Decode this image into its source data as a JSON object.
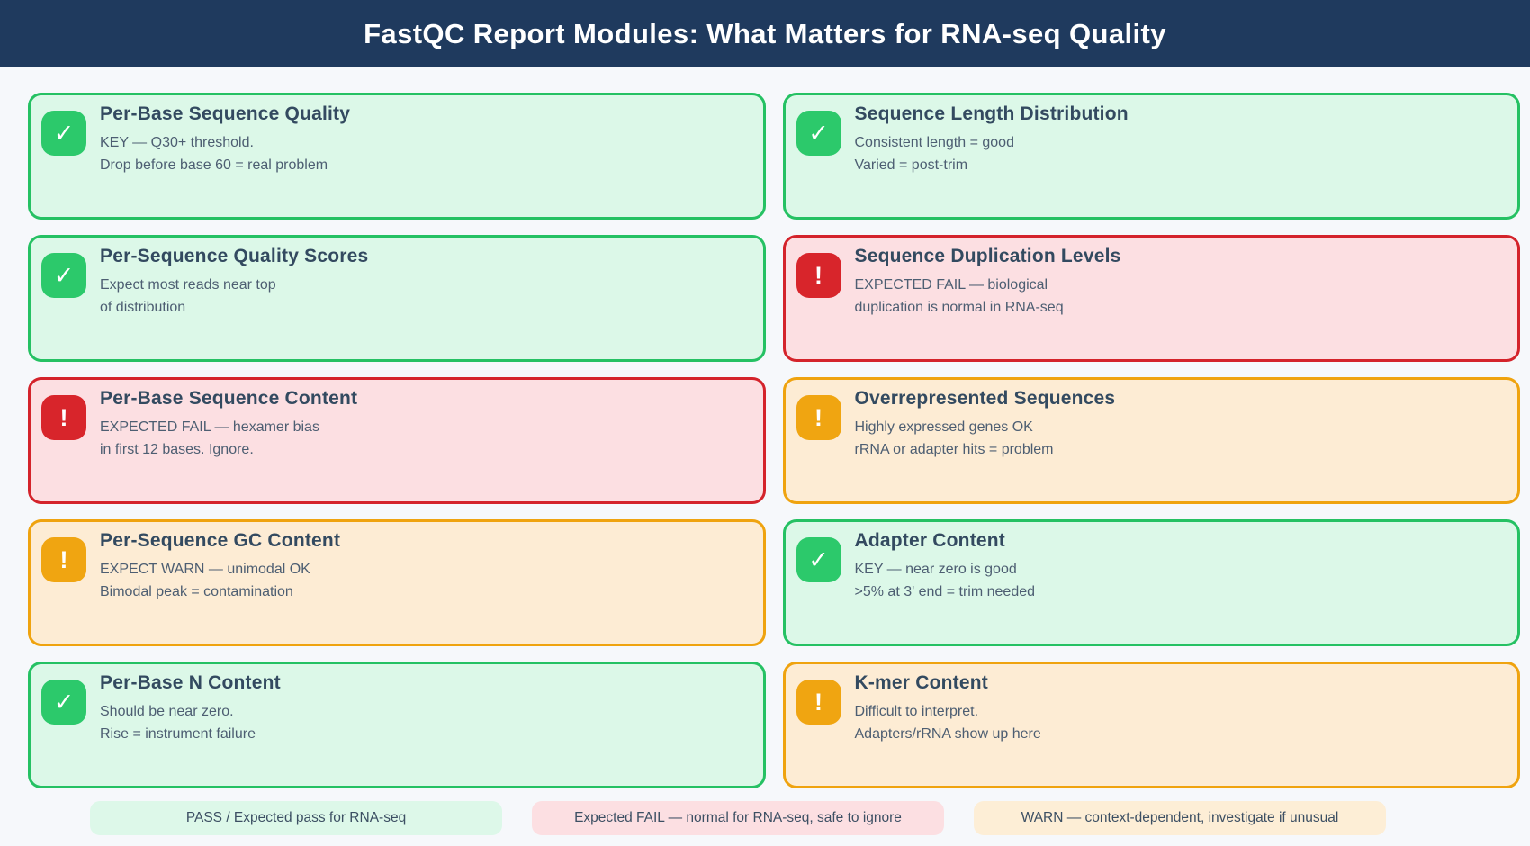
{
  "header": {
    "title": "FastQC Report Modules: What Matters for RNA-seq Quality"
  },
  "cards": [
    {
      "status": "pass",
      "glyph": "✓",
      "title": "Per-Base Sequence Quality",
      "line1": "KEY — Q30+ threshold.",
      "line2": "Drop before base 60 = real problem"
    },
    {
      "status": "pass",
      "glyph": "✓",
      "title": "Sequence Length Distribution",
      "line1": "Consistent length = good",
      "line2": "Varied = post-trim"
    },
    {
      "status": "pass",
      "glyph": "✓",
      "title": "Per-Sequence Quality Scores",
      "line1": "Expect most reads near top",
      "line2": "of distribution"
    },
    {
      "status": "fail",
      "glyph": "!",
      "title": "Sequence Duplication Levels",
      "line1": "EXPECTED FAIL — biological",
      "line2": "duplication is normal in RNA-seq"
    },
    {
      "status": "fail",
      "glyph": "!",
      "title": "Per-Base Sequence Content",
      "line1": "EXPECTED FAIL — hexamer bias",
      "line2": "in first 12 bases. Ignore."
    },
    {
      "status": "warn",
      "glyph": "!",
      "title": "Overrepresented Sequences",
      "line1": "Highly expressed genes OK",
      "line2": "rRNA or adapter hits = problem"
    },
    {
      "status": "warn",
      "glyph": "!",
      "title": "Per-Sequence GC Content",
      "line1": "EXPECT WARN — unimodal OK",
      "line2": "Bimodal peak = contamination"
    },
    {
      "status": "pass",
      "glyph": "✓",
      "title": "Adapter Content",
      "line1": "KEY — near zero is good",
      "line2": ">5% at 3' end = trim needed"
    },
    {
      "status": "pass",
      "glyph": "✓",
      "title": "Per-Base N Content",
      "line1": "Should be near zero.",
      "line2": "Rise = instrument failure"
    },
    {
      "status": "warn",
      "glyph": "!",
      "title": "K-mer Content",
      "line1": "Difficult to interpret.",
      "line2": "Adapters/rRNA show up here"
    }
  ],
  "legend": [
    {
      "status": "pass",
      "label": "PASS / Expected pass for RNA-seq"
    },
    {
      "status": "fail",
      "label": "Expected FAIL — normal for RNA-seq, safe to ignore"
    },
    {
      "status": "warn",
      "label": "WARN — context-dependent, investigate if unusual"
    }
  ],
  "colors": {
    "header_bg": "#1f3a5e",
    "page_bg": "#f6f8fb",
    "pass_bg": "#dcf8e8",
    "pass_border": "#25c163",
    "pass_badge": "#2cc96b",
    "fail_bg": "#fcdfe2",
    "fail_border": "#d4232b",
    "fail_badge": "#d8252b",
    "warn_bg": "#fdecd4",
    "warn_border": "#efa30f",
    "warn_badge": "#f0a511",
    "card_title_text": "#334a60",
    "card_body_text": "#4d5e72"
  }
}
